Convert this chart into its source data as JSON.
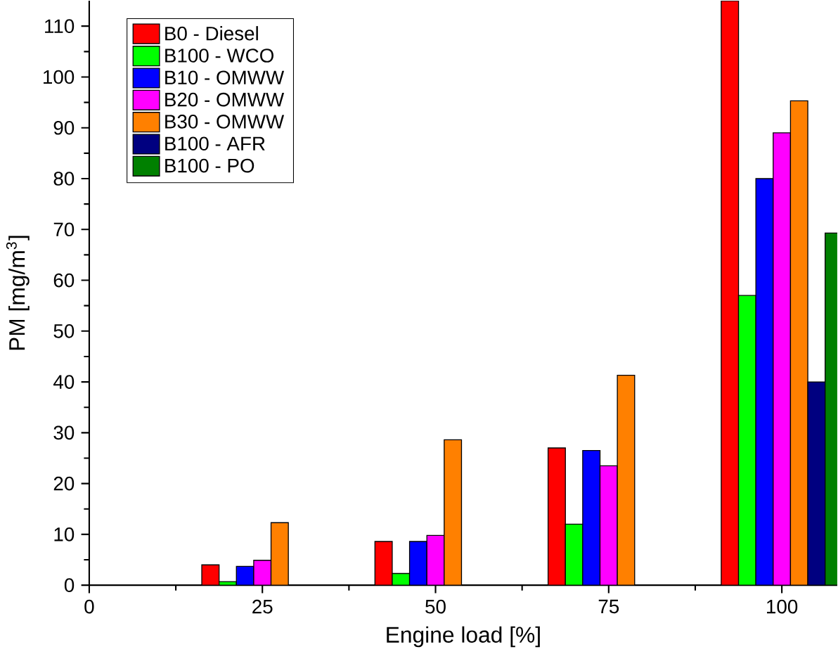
{
  "chart_data": {
    "type": "bar",
    "xlabel": "Engine load [%]",
    "ylabel": "PM [mg/m$^{3}$]",
    "x": [
      25,
      50,
      75,
      100
    ],
    "xlim": [
      0,
      108
    ],
    "ylim": [
      0,
      115
    ],
    "xticks": [
      0,
      25,
      50,
      75,
      100
    ],
    "yticks": [
      0,
      10,
      20,
      30,
      40,
      50,
      60,
      70,
      80,
      90,
      100,
      110
    ],
    "legend": "top left",
    "series": [
      {
        "name": "B0 - Diesel",
        "color": "#ff0000",
        "values": [
          4.0,
          8.6,
          27,
          115
        ]
      },
      {
        "name": "B100 - WCO",
        "color": "#00ff00",
        "values": [
          0.7,
          2.3,
          12,
          57
        ]
      },
      {
        "name": "B10 - OMWW",
        "color": "#0000ff",
        "values": [
          3.7,
          8.6,
          26.5,
          80
        ]
      },
      {
        "name": "B20 - OMWW",
        "color": "#ff00ff",
        "values": [
          4.9,
          9.8,
          23.5,
          89
        ]
      },
      {
        "name": "B30 - OMWW",
        "color": "#ff8000",
        "values": [
          12.3,
          28.6,
          41.3,
          95.3
        ]
      },
      {
        "name": "B100 - AFR",
        "color": "#000080",
        "values": [
          null,
          null,
          null,
          40
        ]
      },
      {
        "name": "B100 - PO",
        "color": "#008000",
        "values": [
          null,
          null,
          null,
          69.3
        ]
      }
    ]
  }
}
